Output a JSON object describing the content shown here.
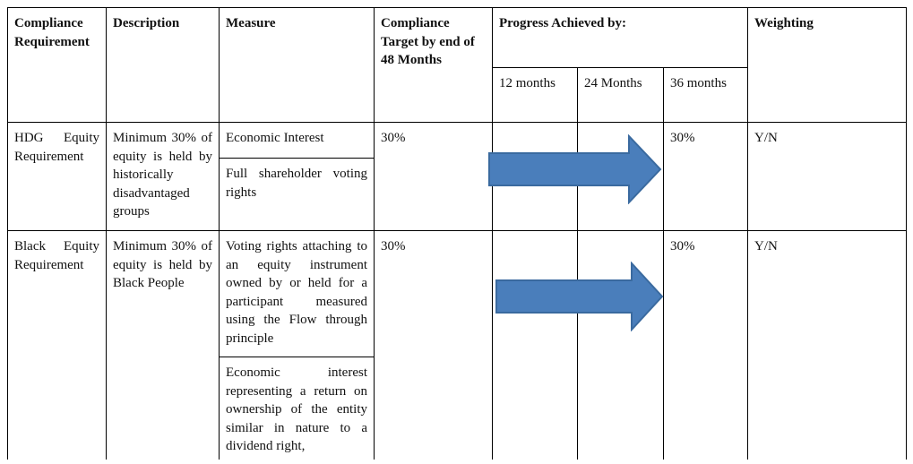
{
  "table": {
    "headers": {
      "requirement": "Compliance Requirement",
      "description": "Description",
      "measure": "Measure",
      "target": "Compliance Target by end of 48 Months",
      "progress": "Progress Achieved by:",
      "m12": "12 months",
      "m24": "24 Months",
      "m36": "36 months",
      "weighting": "Weighting"
    },
    "rows": [
      {
        "requirement": "HDG Equity Requirement",
        "description": "Minimum 30% of equity is held by historically disadvantaged groups",
        "measures": [
          "Economic Interest",
          "Full shareholder voting rights"
        ],
        "target": "30%",
        "m36": "30%",
        "weighting": "Y/N"
      },
      {
        "requirement": "Black Equity Requirement",
        "description": "Minimum 30% of equity is held by Black People",
        "measures": [
          "Voting rights attaching to an equity instrument owned by or held for a participant measured using the Flow through principle",
          "Economic interest representing a return on ownership of the entity similar in nature to a dividend right,"
        ],
        "target": "30%",
        "m36": "30%",
        "weighting": "Y/N"
      }
    ],
    "arrow_color": "#4a7ebb"
  }
}
